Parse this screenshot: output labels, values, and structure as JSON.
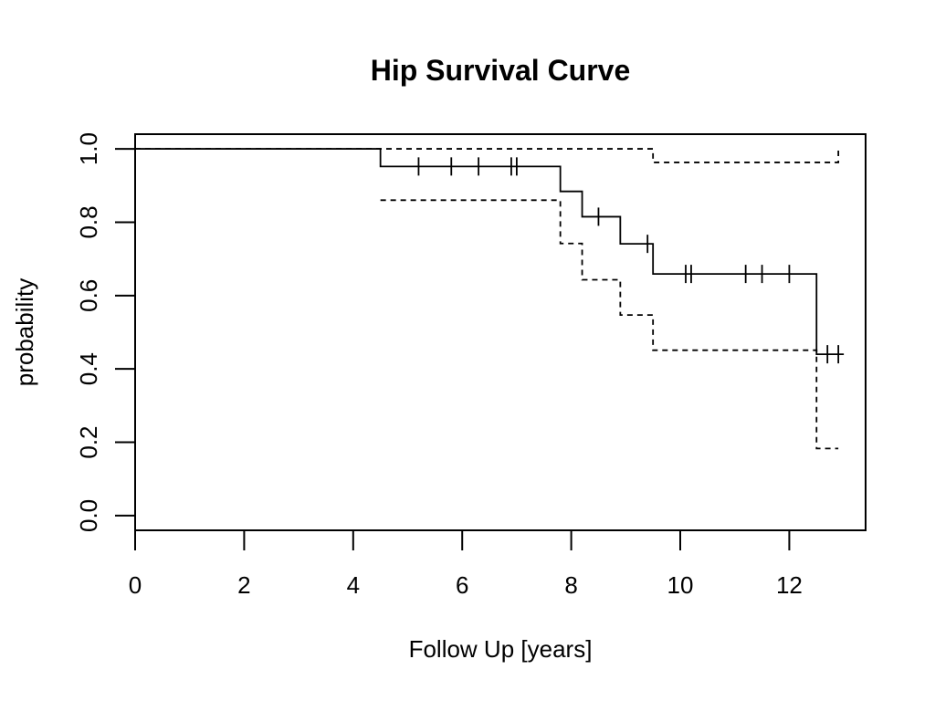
{
  "chart_data": {
    "type": "line",
    "title": "Hip Survival Curve",
    "xlabel": "Follow Up [years]",
    "ylabel": "probability",
    "xlim": [
      0,
      13.4
    ],
    "ylim": [
      -0.04,
      1.04
    ],
    "x_ticks": [
      0,
      2,
      4,
      6,
      8,
      10,
      12
    ],
    "x_tick_labels": [
      "0",
      "2",
      "4",
      "6",
      "8",
      "10",
      "12"
    ],
    "y_ticks": [
      0.0,
      0.2,
      0.4,
      0.6,
      0.8,
      1.0
    ],
    "y_tick_labels": [
      "0.0",
      "0.2",
      "0.4",
      "0.6",
      "0.8",
      "1.0"
    ],
    "grid": false,
    "series": [
      {
        "role": "estimate",
        "style": "solid",
        "color": "#000000",
        "x": [
          0,
          4.5,
          7.8,
          8.2,
          8.9,
          9.5,
          12.5,
          13.0
        ],
        "y": [
          1.0,
          0.952,
          0.884,
          0.815,
          0.741,
          0.659,
          0.44,
          0.44
        ]
      },
      {
        "role": "upper confidence limit",
        "style": "dashed",
        "color": "#000000",
        "x": [
          0,
          9.5,
          12.9
        ],
        "y": [
          1.0,
          0.963,
          1.0
        ]
      },
      {
        "role": "lower confidence limit",
        "style": "dashed",
        "color": "#000000",
        "x": [
          4.5,
          7.8,
          8.2,
          8.9,
          9.5,
          12.5,
          12.9
        ],
        "y": [
          0.86,
          0.742,
          0.643,
          0.547,
          0.451,
          0.183,
          0.183
        ]
      }
    ],
    "censor_times": [
      5.2,
      5.8,
      6.3,
      6.9,
      7.0,
      8.5,
      9.4,
      10.1,
      10.2,
      11.2,
      11.5,
      12.0,
      12.7,
      12.9
    ]
  }
}
